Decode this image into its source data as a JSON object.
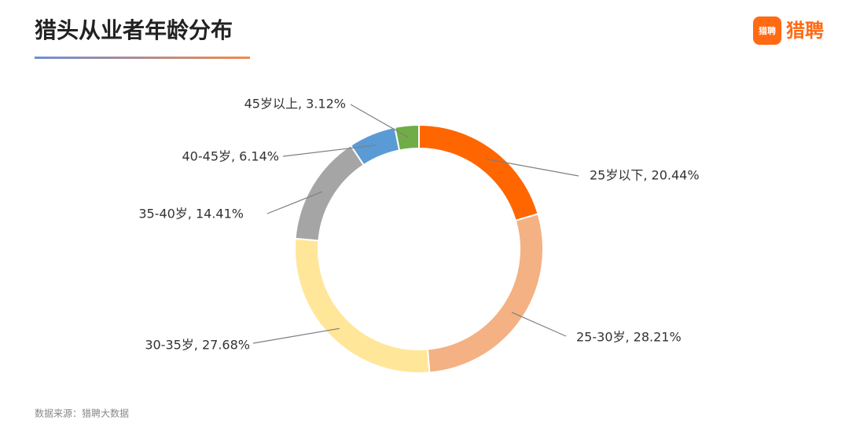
{
  "chart_data": {
    "type": "donut",
    "title": "猎头从业者年龄分布",
    "values": [
      20.44,
      28.21,
      27.68,
      14.41,
      6.14,
      3.12
    ],
    "value_labels": [
      "25岁以下, 20.44%",
      "25-30岁, 28.21%",
      "30-35岁, 27.68%",
      "35-40岁, 14.41%",
      "40-45岁, 6.14%",
      "45岁以上, 3.12%"
    ],
    "colors": [
      "#ff6600",
      "#f4b183",
      "#ffe699",
      "#a5a5a5",
      "#5b9bd5",
      "#70ad47"
    ],
    "source": "数据来源：猎聘大数据"
  },
  "brand": {
    "icon_text": "猎聘",
    "name": "猎聘"
  }
}
